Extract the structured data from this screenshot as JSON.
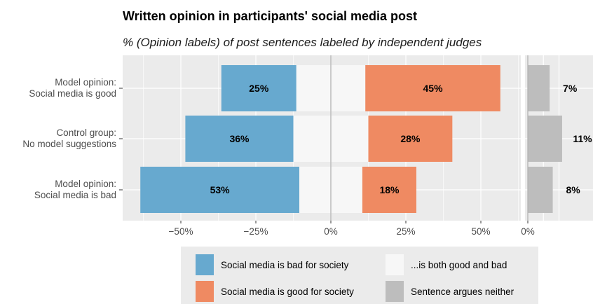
{
  "chart_data": {
    "type": "bar",
    "layout": "diverging-stacked-horizontal",
    "title": "Written opinion in participants' social media post",
    "subtitle": "% (Opinion labels) of post sentences labeled by independent judges",
    "categories": [
      {
        "line1": "Model opinion:",
        "line2": "Social media is good"
      },
      {
        "line1": "Control group:",
        "line2": "No model suggestions"
      },
      {
        "line1": "Model opinion:",
        "line2": "Social media is bad"
      }
    ],
    "series": [
      {
        "name": "Social media is bad for society",
        "color": "#67a9cf",
        "values": [
          25,
          36,
          53
        ],
        "labels": [
          "25%",
          "36%",
          "53%"
        ]
      },
      {
        "name": "...is both good and bad",
        "color": "#f7f7f7",
        "values": [
          23,
          25,
          21
        ],
        "labels": [
          "",
          "",
          ""
        ]
      },
      {
        "name": "Social media is good for society",
        "color": "#ef8a62",
        "values": [
          45,
          28,
          18
        ],
        "labels": [
          "45%",
          "28%",
          "18%"
        ]
      },
      {
        "name": "Sentence argues neither",
        "color": "#bdbdbd",
        "values": [
          7,
          11,
          8
        ],
        "labels": [
          "7%",
          "11%",
          "8%"
        ]
      }
    ],
    "xlim": [
      -65,
      65
    ],
    "x_ticks": [
      -50,
      -25,
      0,
      25,
      50
    ],
    "x_tick_labels": [
      "−50%",
      "−25%",
      "0%",
      "25%",
      "50%"
    ],
    "neither_xlim": [
      0,
      12
    ],
    "neither_tick_labels": [
      "0%"
    ],
    "grid": true,
    "legend_position": "bottom"
  }
}
